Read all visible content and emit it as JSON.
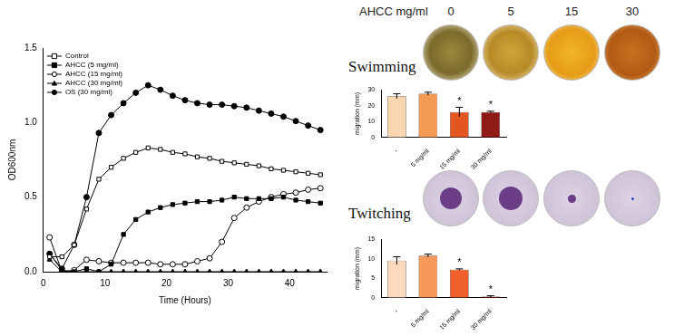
{
  "chart_data": [
    {
      "type": "line",
      "x_label": "Time (Hours)",
      "y_label": "OD600nm",
      "x": [
        1,
        3,
        5,
        7,
        9,
        11,
        13,
        15,
        17,
        19,
        21,
        23,
        25,
        27,
        29,
        31,
        33,
        35,
        37,
        39,
        41,
        43,
        45
      ],
      "series": [
        {
          "name": "Control",
          "color": "#000000",
          "marker": "square-open",
          "values": [
            0.1,
            0.1,
            0.18,
            0.42,
            0.62,
            0.7,
            0.76,
            0.8,
            0.83,
            0.82,
            0.8,
            0.79,
            0.77,
            0.76,
            0.74,
            0.73,
            0.72,
            0.71,
            0.69,
            0.68,
            0.67,
            0.66,
            0.65
          ]
        },
        {
          "name": "AHCC (5 mg/ml)",
          "color": "#000000",
          "marker": "square",
          "values": [
            0.12,
            0.01,
            0.0,
            0.02,
            0.0,
            0.05,
            0.25,
            0.35,
            0.4,
            0.43,
            0.45,
            0.46,
            0.47,
            0.47,
            0.48,
            0.5,
            0.49,
            0.49,
            0.49,
            0.5,
            0.48,
            0.47,
            0.46
          ]
        },
        {
          "name": "AHCC (15 mg/ml)",
          "color": "#000000",
          "marker": "circle-open",
          "values": [
            0.23,
            0.0,
            0.01,
            0.08,
            0.07,
            0.06,
            0.06,
            0.06,
            0.06,
            0.05,
            0.05,
            0.05,
            0.07,
            0.09,
            0.2,
            0.36,
            0.43,
            0.47,
            0.5,
            0.52,
            0.53,
            0.55,
            0.56
          ]
        },
        {
          "name": "AHCC (30 mg/ml)",
          "color": "#000000",
          "marker": "triangle",
          "values": [
            0.08,
            0.0,
            0.0,
            0.0,
            0.0,
            0.0,
            0.0,
            0.0,
            0.0,
            0.0,
            0.0,
            0.0,
            0.0,
            0.0,
            0.0,
            0.0,
            0.0,
            0.0,
            0.0,
            0.0,
            0.0,
            0.0,
            0.0
          ]
        },
        {
          "name": "OS (30 mg/ml)",
          "color": "#000000",
          "marker": "circle",
          "values": [
            0.12,
            0.02,
            0.18,
            0.5,
            0.93,
            1.05,
            1.13,
            1.2,
            1.25,
            1.22,
            1.18,
            1.15,
            1.13,
            1.12,
            1.12,
            1.11,
            1.1,
            1.08,
            1.06,
            1.04,
            1.01,
            0.98,
            0.95
          ]
        }
      ],
      "xlim": [
        0,
        46
      ],
      "xticks": [
        0,
        10,
        20,
        30,
        40
      ],
      "ylim": [
        0,
        1.5
      ],
      "yticks": [
        {
          "value": 0,
          "label": "0.0"
        },
        {
          "value": 0.5,
          "label": "0.5"
        },
        {
          "value": 1,
          "label": "1.0"
        },
        {
          "value": 1.5,
          "label": "1.5"
        }
      ],
      "grid": false,
      "legend": "top-left"
    },
    {
      "type": "bar",
      "y_label": "migration (mm)",
      "categories": [
        "-",
        "5 mg/ml",
        "15 mg/ml",
        "30 mg/ml"
      ],
      "values": [
        26,
        27.5,
        16,
        16
      ],
      "errors": [
        1.5,
        1,
        3,
        0.5
      ],
      "colors": [
        "#f9d6b0",
        "#f59a55",
        "#e4561f",
        "#8e1b16"
      ],
      "annotations": [
        {
          "category": "15 mg/ml",
          "text": "*"
        },
        {
          "category": "30 mg/ml",
          "text": "*"
        }
      ],
      "ylim": [
        0,
        30
      ],
      "yticks": [
        0,
        10,
        20,
        30
      ],
      "grid": false
    },
    {
      "type": "bar",
      "y_label": "migration (mm)",
      "categories": [
        "-",
        "5 mg/ml",
        "15 mg/ml",
        "30 mg/ml"
      ],
      "values": [
        9.5,
        10.8,
        7.2,
        0.3
      ],
      "errors": [
        1,
        0.4,
        0.2,
        0.2
      ],
      "colors": [
        "#fbd9ba",
        "#f7995a",
        "#f0602c",
        "#e21f1c"
      ],
      "annotations": [
        {
          "category": "15 mg/ml",
          "text": "*"
        },
        {
          "category": "30 mg/ml",
          "text": "*"
        }
      ],
      "ylim": [
        0,
        15
      ],
      "yticks": [
        0,
        5,
        10,
        15
      ],
      "grid": false
    }
  ],
  "plates": {
    "header": "AHCC mg/ml",
    "concentrations": [
      "0",
      "5",
      "15",
      "30"
    ],
    "rows": [
      "Swimming",
      "Twitching"
    ]
  }
}
